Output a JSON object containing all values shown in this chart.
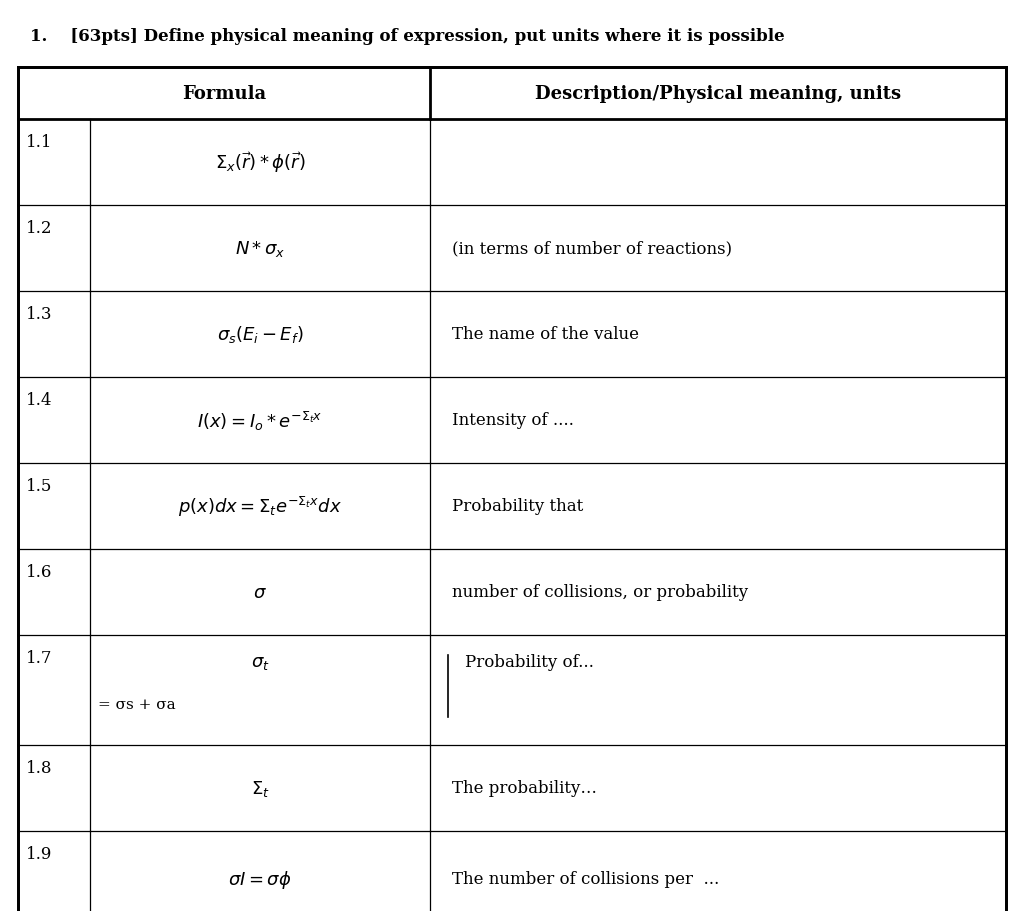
{
  "title": "1.    [63pts] Define physical meaning of expression, put units where it is possible",
  "header_col1": "Formula",
  "header_col2": "Description/Physical meaning, units",
  "rows": [
    {
      "id": "1.1",
      "formula_latex": "$\\Sigma_x(\\vec{r}) * \\phi(\\vec{r})$",
      "description": ""
    },
    {
      "id": "1.2",
      "formula_latex": "$N * \\sigma_x$",
      "description": "(in terms of number of reactions)"
    },
    {
      "id": "1.3",
      "formula_latex": "$\\sigma_s(E_i - E_f)$",
      "description": "The name of the value"
    },
    {
      "id": "1.4",
      "formula_latex": "$I(x) = I_o * e^{-\\Sigma_t x}$",
      "description": "Intensity of ...."
    },
    {
      "id": "1.5",
      "formula_latex": "$p(x)dx = \\Sigma_t e^{-\\Sigma_t x}dx$",
      "description": "Probability that"
    },
    {
      "id": "1.6",
      "formula_latex": "$\\sigma$",
      "description": "number of collisions, or probability"
    },
    {
      "id": "1.7",
      "formula_latex": "$\\sigma_t$",
      "formula_extra": "= σs + σa",
      "description": "Probability of..."
    },
    {
      "id": "1.8",
      "formula_latex": "$\\Sigma_t$",
      "description": "The probability…"
    },
    {
      "id": "1.9",
      "formula_latex": "$\\sigma I= \\sigma\\phi$",
      "description": "The number of collisions per  ..."
    }
  ],
  "bg_color": "#ffffff",
  "border_color": "#000000",
  "text_color": "#000000",
  "fig_width": 10.24,
  "fig_height": 9.12,
  "dpi": 100
}
